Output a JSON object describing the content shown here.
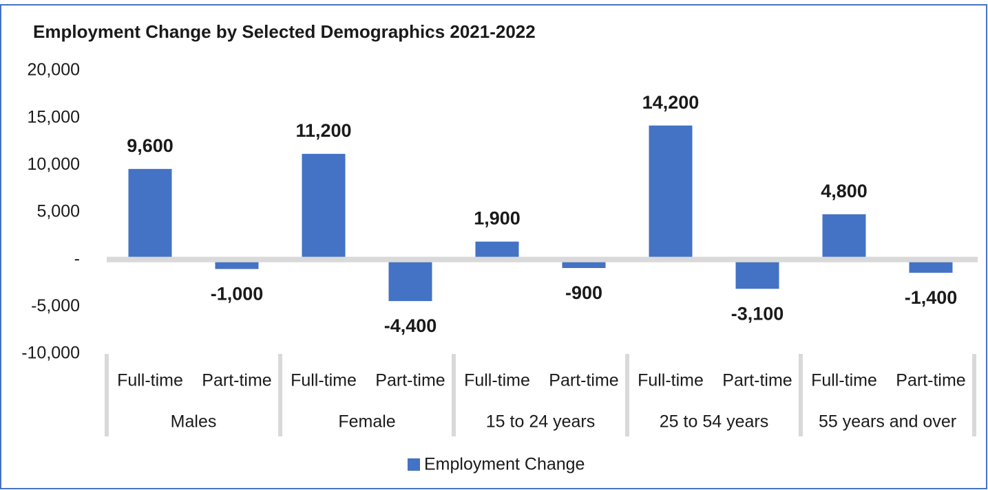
{
  "chart_data": {
    "type": "bar",
    "title": "Employment Change by Selected Demographics 2021-2022",
    "categories": [
      "Full-time",
      "Part-time",
      "Full-time",
      "Part-time",
      "Full-time",
      "Part-time",
      "Full-time",
      "Part-time",
      "Full-time",
      "Part-time"
    ],
    "groups": [
      "Males",
      "Female",
      "15 to 24 years",
      "25 to 54 years",
      "55 years and over"
    ],
    "series": [
      {
        "name": "Employment Change",
        "color": "#4472c4",
        "values": [
          9600,
          -1000,
          11200,
          -4400,
          1900,
          -900,
          14200,
          -3100,
          4800,
          -1400
        ],
        "value_labels": [
          "9,600",
          "-1,000",
          "11,200",
          "-4,400",
          "1,900",
          "-900",
          "14,200",
          "-3,100",
          "4,800",
          "-1,400"
        ]
      }
    ],
    "ylim": [
      -10000,
      20000
    ],
    "yticks": [
      {
        "value": 20000,
        "label": "20,000"
      },
      {
        "value": 15000,
        "label": "15,000"
      },
      {
        "value": 10000,
        "label": "10,000"
      },
      {
        "value": 5000,
        "label": "5,000"
      },
      {
        "value": 0,
        "label": "-"
      },
      {
        "value": -5000,
        "label": "-5,000"
      },
      {
        "value": -10000,
        "label": "-10,000"
      }
    ],
    "grid": false,
    "legend": "bottom"
  }
}
